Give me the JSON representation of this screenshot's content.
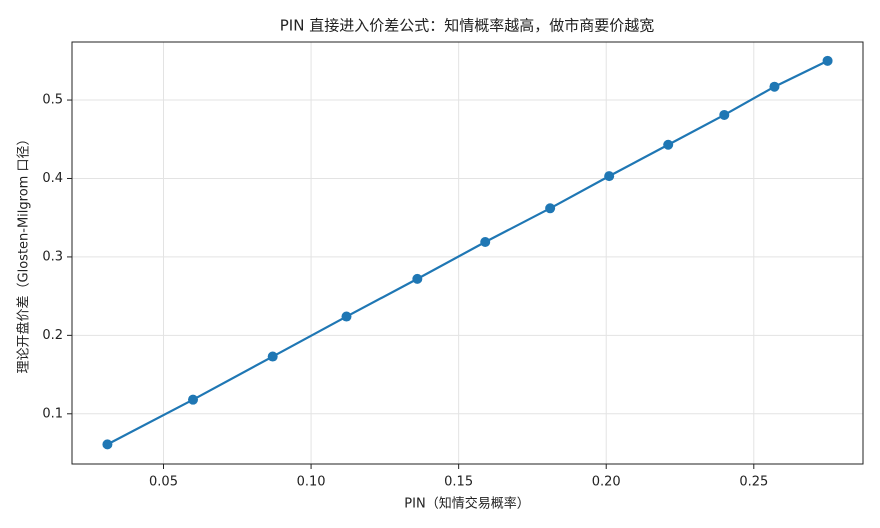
{
  "chart_data": {
    "type": "line",
    "title": "PIN 直接进入价差公式：知情概率越高，做市商要价越宽",
    "x_label": "PIN（知情交易概率）",
    "y_label": "理论开盘价差（Glosten-Milgrom 口径）",
    "x": [
      0.031,
      0.06,
      0.087,
      0.112,
      0.136,
      0.159,
      0.181,
      0.201,
      0.221,
      0.24,
      0.257,
      0.275
    ],
    "values": [
      0.061,
      0.118,
      0.173,
      0.224,
      0.272,
      0.319,
      0.362,
      0.403,
      0.443,
      0.481,
      0.517,
      0.55
    ],
    "color": "#1f77b4",
    "markers": true,
    "xlim": [
      0.019,
      0.287
    ],
    "ylim": [
      0.036,
      0.574
    ],
    "xticks": [
      0.05,
      {
        "value": 0.1,
        "label": "0.10"
      },
      0.15,
      {
        "value": 0.2,
        "label": "0.20"
      },
      0.25
    ],
    "yticks": [
      0.1,
      0.2,
      0.3,
      0.4,
      0.5
    ],
    "grid": true
  }
}
